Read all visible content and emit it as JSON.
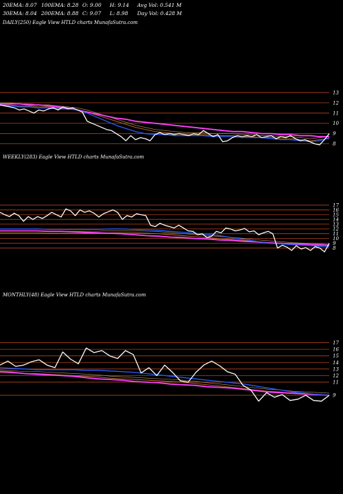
{
  "header": {
    "row1": {
      "ema20": "20EMA: 8.07",
      "ema100": "100EMA: 8.28",
      "open": "O: 9.00",
      "high": "H: 9.14",
      "avg_vol": "Avg Vol: 0.541 M"
    },
    "row2": {
      "ema30": "30EMA: 8.04",
      "ema200": "200EMA: 8.88",
      "close": "C: 9.07",
      "low": "L: 8.98",
      "day_vol": "Day Vol: 0.428 M"
    }
  },
  "colors": {
    "background": "#000000",
    "price": "#ffffff",
    "gridline": "#b8451c",
    "ema_short": "#2a5cff",
    "ema_long": "#ff40ff",
    "ema_mid": "#c07030"
  },
  "chart_data": [
    {
      "type": "line",
      "title": "DAILY(250) Eagle  View  HTLD charts MunafaSutra.com",
      "ylim": [
        6.5,
        14
      ],
      "y_ticks": [
        "13",
        "12",
        "11",
        "10",
        "9",
        "8"
      ],
      "y_tick_values": [
        13,
        12,
        11,
        10,
        9,
        8
      ],
      "grid": true,
      "series": [
        {
          "role": "price",
          "values": [
            11.8,
            11.7,
            11.6,
            11.5,
            11.3,
            11.4,
            11.2,
            11.0,
            11.3,
            11.2,
            11.4,
            11.5,
            11.3,
            11.6,
            11.4,
            11.5,
            11.3,
            11.1,
            10.2,
            10.0,
            9.8,
            9.6,
            9.4,
            9.3,
            9.0,
            8.7,
            8.3,
            8.8,
            8.4,
            8.6,
            8.5,
            8.3,
            8.9,
            9.1,
            8.9,
            9.0,
            8.9,
            9.0,
            8.9,
            8.8,
            9.0,
            8.9,
            9.3,
            9.0,
            8.7,
            8.9,
            8.2,
            8.3,
            8.6,
            8.8,
            8.7,
            8.8,
            8.7,
            8.9,
            8.6,
            8.7,
            8.8,
            8.5,
            8.7,
            8.6,
            8.8,
            8.5,
            8.3,
            8.4,
            8.2,
            8.0,
            7.9,
            8.4,
            9.0
          ]
        },
        {
          "role": "ema_short",
          "values": [
            11.8,
            11.7,
            11.6,
            11.6,
            11.5,
            11.5,
            11.4,
            11.4,
            11.3,
            11.0,
            10.6,
            10.2,
            9.8,
            9.5,
            9.2,
            9.0,
            8.9,
            8.9,
            8.8,
            8.8,
            8.8,
            8.8,
            8.7,
            8.7,
            8.7,
            8.6,
            8.6,
            8.6,
            8.5,
            8.4,
            8.4,
            8.3,
            8.2,
            8.3,
            8.6
          ]
        },
        {
          "role": "ema_mid",
          "values": [
            11.8,
            11.8,
            11.7,
            11.7,
            11.6,
            11.6,
            11.5,
            11.4,
            11.3,
            11.1,
            10.8,
            10.5,
            10.2,
            9.9,
            9.6,
            9.4,
            9.2,
            9.1,
            9.0,
            8.9,
            8.9,
            8.9,
            8.8,
            8.8,
            8.8,
            8.7,
            8.7,
            8.6,
            8.6,
            8.5,
            8.5,
            8.4,
            8.3,
            8.4,
            8.5
          ]
        },
        {
          "role": "ema_long",
          "values": [
            11.9,
            11.9,
            11.9,
            11.8,
            11.8,
            11.7,
            11.6,
            11.5,
            11.3,
            11.1,
            10.9,
            10.7,
            10.5,
            10.4,
            10.2,
            10.1,
            10.0,
            9.9,
            9.8,
            9.7,
            9.6,
            9.5,
            9.4,
            9.3,
            9.2,
            9.2,
            9.1,
            9.0,
            9.0,
            8.9,
            8.9,
            8.8,
            8.8,
            8.7,
            8.7
          ]
        }
      ]
    },
    {
      "type": "line",
      "title": "WEEKLY(283) Eagle  View  HTLD charts MunafaSutra.com",
      "ylim": [
        6.5,
        18
      ],
      "y_ticks": [
        "17",
        "16",
        "15",
        "14",
        "13",
        "12",
        "11",
        "10",
        "9",
        "8"
      ],
      "y_tick_values": [
        17,
        16,
        15,
        14,
        13,
        12,
        11,
        10,
        9,
        8
      ],
      "grid": true,
      "series": [
        {
          "role": "price",
          "values": [
            15.5,
            15.0,
            14.6,
            15.3,
            14.8,
            13.6,
            14.6,
            14.0,
            14.6,
            14.2,
            14.8,
            15.5,
            15.0,
            14.5,
            16.2,
            15.8,
            14.8,
            16.0,
            15.5,
            15.8,
            15.3,
            14.5,
            15.2,
            15.6,
            16.0,
            15.5,
            14.0,
            14.8,
            14.5,
            15.2,
            15.0,
            14.8,
            12.8,
            12.5,
            13.2,
            12.8,
            12.5,
            12.2,
            12.8,
            12.2,
            11.6,
            11.5,
            10.8,
            11.0,
            10.2,
            10.5,
            11.5,
            11.2,
            12.2,
            12.0,
            11.6,
            11.8,
            12.1,
            11.4,
            11.6,
            10.8,
            11.2,
            11.5,
            11.0,
            8.0,
            8.6,
            8.2,
            7.5,
            8.5,
            7.8,
            8.1,
            7.5,
            8.3,
            8.0,
            7.2,
            9.0
          ]
        },
        {
          "role": "ema_short",
          "values": [
            12.0,
            12.0,
            12.0,
            12.0,
            11.9,
            11.9,
            11.9,
            11.9,
            11.9,
            12.0,
            12.0,
            11.9,
            11.8,
            11.7,
            11.5,
            11.3,
            11.1,
            10.9,
            10.6,
            10.2,
            9.8,
            9.4,
            9.0,
            8.9,
            8.7,
            8.6,
            8.4,
            8.3
          ]
        },
        {
          "role": "ema_mid",
          "values": [
            11.2,
            11.2,
            11.2,
            11.2,
            11.1,
            11.1,
            11.1,
            11.1,
            11.1,
            11.2,
            11.2,
            11.2,
            11.1,
            11.0,
            10.8,
            10.6,
            10.4,
            10.2,
            10.0,
            9.8,
            9.6,
            9.3,
            9.1,
            8.9,
            8.7,
            8.6,
            8.5,
            8.3
          ]
        },
        {
          "role": "ema_long",
          "values": [
            11.6,
            11.6,
            11.6,
            11.6,
            11.5,
            11.5,
            11.4,
            11.3,
            11.2,
            11.1,
            11.0,
            10.8,
            10.6,
            10.5,
            10.3,
            10.2,
            10.0,
            9.9,
            9.7,
            9.6,
            9.4,
            9.3,
            9.1,
            9.0,
            8.9,
            8.8,
            8.7,
            8.6
          ]
        }
      ]
    },
    {
      "type": "line",
      "title": "MONTHLY(48) Eagle  View  HTLD charts MunafaSutra.com",
      "ylim": [
        6.5,
        18
      ],
      "y_ticks": [
        "17",
        "16",
        "15",
        "14",
        "13",
        "12",
        "11",
        "9"
      ],
      "y_tick_values": [
        17,
        16,
        15,
        14,
        13,
        12,
        11,
        9
      ],
      "grid": true,
      "series": [
        {
          "role": "price",
          "values": [
            13.6,
            14.2,
            13.4,
            13.6,
            14.1,
            14.4,
            13.6,
            13.2,
            15.6,
            14.5,
            13.8,
            16.2,
            15.5,
            15.8,
            15.0,
            14.6,
            15.8,
            15.2,
            12.4,
            13.2,
            12.0,
            13.6,
            12.5,
            11.2,
            11.0,
            12.5,
            13.6,
            14.2,
            13.5,
            12.6,
            12.2,
            10.5,
            9.8,
            8.1,
            9.4,
            8.7,
            9.1,
            8.2,
            8.4,
            9.0,
            8.2,
            8.1,
            9.0
          ]
        },
        {
          "role": "ema_short",
          "values": [
            13.2,
            13.1,
            13.0,
            12.9,
            12.9,
            12.9,
            12.9,
            12.8,
            12.8,
            12.7,
            12.6,
            12.5,
            12.3,
            12.1,
            11.9,
            11.7,
            11.5,
            11.3,
            11.1,
            10.9,
            10.7,
            10.4,
            10.1,
            9.8,
            9.5,
            9.3,
            9.1,
            9.0
          ]
        },
        {
          "role": "ema_mid",
          "values": [
            12.5,
            12.4,
            12.3,
            12.3,
            12.2,
            12.1,
            12.0,
            11.9,
            11.8,
            11.6,
            11.5,
            11.4,
            11.3,
            11.2,
            11.1,
            11.0,
            10.8,
            10.6,
            10.4,
            10.2,
            10.0,
            9.8,
            9.6,
            9.5,
            9.3,
            9.2,
            9.1,
            9.0
          ]
        },
        {
          "role": "ema_long",
          "values": [
            12.6,
            12.5,
            12.3,
            12.2,
            12.1,
            12.0,
            11.9,
            11.7,
            11.5,
            11.4,
            11.3,
            11.1,
            11.0,
            10.9,
            10.7,
            10.6,
            10.5,
            10.3,
            10.2,
            10.1,
            9.9,
            9.7,
            9.5,
            9.4,
            9.3,
            9.2,
            9.1,
            9.0
          ]
        }
      ]
    }
  ]
}
